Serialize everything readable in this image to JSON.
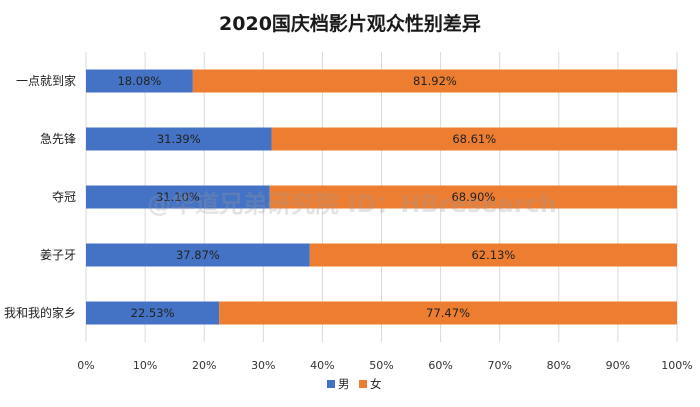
{
  "chart_data": {
    "type": "bar",
    "orientation": "horizontal",
    "stacked": true,
    "title": "2020国庆档影片观众性别差异",
    "categories": [
      "一点就到家",
      "急先锋",
      "夺冠",
      "姜子牙",
      "我和我的家乡"
    ],
    "series": [
      {
        "name": "男",
        "color": "#4472C4",
        "values": [
          18.08,
          31.39,
          31.1,
          37.87,
          22.53
        ],
        "labels": [
          "18.08%",
          "31.39%",
          "31.10%",
          "37.87%",
          "22.53%"
        ]
      },
      {
        "name": "女",
        "color": "#ED7D31",
        "values": [
          81.92,
          68.61,
          68.9,
          62.13,
          77.47
        ],
        "labels": [
          "81.92%",
          "68.61%",
          "68.90%",
          "62.13%",
          "77.47%"
        ]
      }
    ],
    "xlim": [
      0,
      100
    ],
    "x_ticks": [
      "0%",
      "10%",
      "20%",
      "30%",
      "40%",
      "50%",
      "60%",
      "70%",
      "80%",
      "90%",
      "100%"
    ],
    "grid": true,
    "legend_position": "bottom",
    "watermark": "@华道兄弟研究院 ID：HBresearch"
  }
}
